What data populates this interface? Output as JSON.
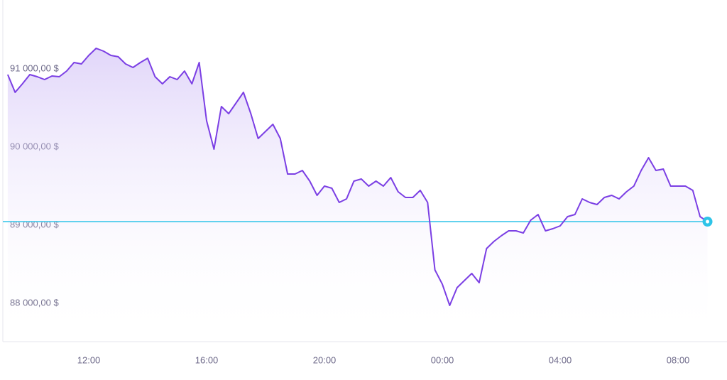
{
  "chart_data": {
    "type": "line",
    "categories": [
      null,
      null,
      null,
      null,
      null,
      null,
      null,
      null,
      null,
      null,
      null,
      "12:00",
      null,
      null,
      null,
      null,
      null,
      null,
      null,
      null,
      null,
      null,
      null,
      null,
      null,
      null,
      null,
      "16:00",
      null,
      null,
      null,
      null,
      null,
      null,
      null,
      null,
      null,
      null,
      null,
      null,
      null,
      null,
      null,
      "20:00",
      null,
      null,
      null,
      null,
      null,
      null,
      null,
      null,
      null,
      null,
      null,
      null,
      null,
      null,
      null,
      "00:00",
      null,
      null,
      null,
      null,
      null,
      null,
      null,
      null,
      null,
      null,
      null,
      null,
      null,
      null,
      null,
      "04:00",
      null,
      null,
      null,
      null,
      null,
      null,
      null,
      null,
      null,
      null,
      null,
      null,
      null,
      null,
      null,
      "08:00",
      null,
      null,
      null,
      null
    ],
    "values": [
      90927,
      90700,
      90809,
      90927,
      90900,
      90864,
      90909,
      90900,
      90973,
      91082,
      91064,
      91173,
      91264,
      91227,
      91173,
      91155,
      91064,
      91018,
      91082,
      91136,
      90900,
      90809,
      90900,
      90864,
      90973,
      90809,
      91082,
      90336,
      89973,
      90518,
      90427,
      90564,
      90700,
      90427,
      90109,
      90200,
      90291,
      90109,
      89655,
      89655,
      89700,
      89564,
      89382,
      89500,
      89473,
      89291,
      89336,
      89564,
      89591,
      89500,
      89564,
      89500,
      89609,
      89427,
      89355,
      89355,
      89445,
      89291,
      88427,
      88245,
      87973,
      88200,
      88291,
      88382,
      88264,
      88700,
      88791,
      88864,
      88927,
      88927,
      88900,
      89064,
      89136,
      88927,
      88955,
      88991,
      89109,
      89136,
      89336,
      89291,
      89264,
      89355,
      89382,
      89336,
      89427,
      89500,
      89700,
      89864,
      89700,
      89718,
      89500,
      89500,
      89500,
      89445,
      89109,
      89045
    ],
    "color": "#7b3fe4",
    "last_value_color": "#2ec4e8",
    "ylim": [
      87500,
      91700
    ],
    "yticks": [
      {
        "value": 88000,
        "label": "88 000,00 $"
      },
      {
        "value": 89000,
        "label": "89 000,00 $"
      },
      {
        "value": 90000,
        "label": "90 000,00 $"
      },
      {
        "value": 91000,
        "label": "91 000,00 $"
      }
    ],
    "grid": false
  }
}
